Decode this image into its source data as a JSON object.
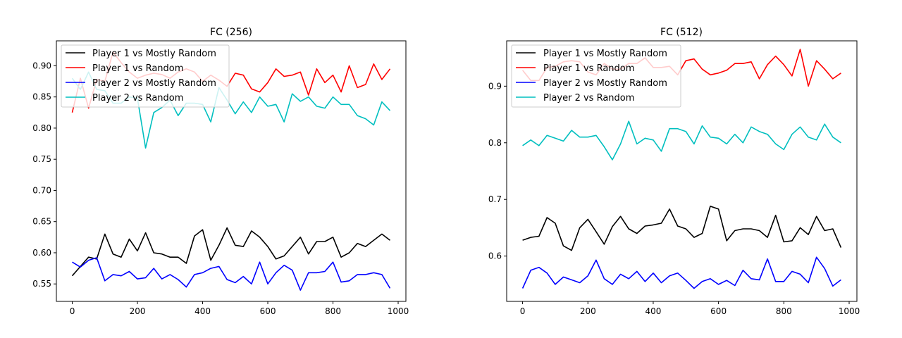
{
  "colors": {
    "player1_mostly_random": "#000000",
    "player1_random": "#ff0000",
    "player2_mostly_random": "#0000ff",
    "player2_random": "#00bfbf"
  },
  "chart_data": [
    {
      "type": "line",
      "title": "FC (256)",
      "xlabel": "",
      "ylabel": "",
      "grid": false,
      "legend_position": "upper-left",
      "xlim": [
        -48.75,
        1023.75
      ],
      "ylim": [
        0.522,
        0.94
      ],
      "xticks": [
        0,
        200,
        400,
        600,
        800,
        1000
      ],
      "yticks": [
        0.55,
        0.6,
        0.65,
        0.7,
        0.75,
        0.8,
        0.85,
        0.9
      ],
      "ytick_labels": [
        "0.55",
        "0.60",
        "0.65",
        "0.70",
        "0.75",
        "0.80",
        "0.85",
        "0.90"
      ],
      "x": [
        0,
        25,
        50,
        75,
        100,
        125,
        150,
        175,
        200,
        225,
        250,
        275,
        300,
        325,
        350,
        375,
        400,
        425,
        450,
        475,
        500,
        525,
        550,
        575,
        600,
        625,
        650,
        675,
        700,
        725,
        750,
        775,
        800,
        825,
        850,
        875,
        900,
        925,
        950,
        975
      ],
      "series": [
        {
          "name": "Player 1 vs Mostly Random",
          "color_key": "player1_mostly_random",
          "values": [
            0.563,
            0.578,
            0.593,
            0.59,
            0.63,
            0.598,
            0.593,
            0.622,
            0.603,
            0.632,
            0.6,
            0.598,
            0.593,
            0.593,
            0.583,
            0.627,
            0.637,
            0.588,
            0.612,
            0.64,
            0.612,
            0.61,
            0.635,
            0.625,
            0.61,
            0.59,
            0.595,
            0.61,
            0.625,
            0.598,
            0.618,
            0.618,
            0.625,
            0.593,
            0.6,
            0.615,
            0.61,
            0.62,
            0.63,
            0.62
          ]
        },
        {
          "name": "Player 1 vs Random",
          "color_key": "player1_random",
          "values": [
            0.825,
            0.88,
            0.832,
            0.878,
            0.875,
            0.922,
            0.905,
            0.89,
            0.88,
            0.885,
            0.888,
            0.886,
            0.88,
            0.89,
            0.895,
            0.89,
            0.875,
            0.885,
            0.877,
            0.867,
            0.888,
            0.885,
            0.863,
            0.858,
            0.873,
            0.895,
            0.883,
            0.885,
            0.89,
            0.853,
            0.895,
            0.873,
            0.885,
            0.858,
            0.9,
            0.865,
            0.87,
            0.903,
            0.878,
            0.895
          ]
        },
        {
          "name": "Player 2 vs Mostly Random",
          "color_key": "player2_mostly_random",
          "values": [
            0.585,
            0.577,
            0.588,
            0.592,
            0.555,
            0.565,
            0.563,
            0.57,
            0.558,
            0.56,
            0.575,
            0.558,
            0.565,
            0.557,
            0.545,
            0.565,
            0.568,
            0.575,
            0.578,
            0.557,
            0.552,
            0.562,
            0.55,
            0.585,
            0.55,
            0.568,
            0.58,
            0.572,
            0.54,
            0.568,
            0.568,
            0.57,
            0.585,
            0.553,
            0.555,
            0.565,
            0.565,
            0.568,
            0.565,
            0.543
          ]
        },
        {
          "name": "Player 2 vs Random",
          "color_key": "player2_random",
          "values": [
            0.88,
            0.862,
            0.89,
            0.862,
            0.86,
            0.84,
            0.84,
            0.85,
            0.848,
            0.768,
            0.825,
            0.833,
            0.845,
            0.82,
            0.84,
            0.84,
            0.838,
            0.81,
            0.865,
            0.845,
            0.823,
            0.842,
            0.825,
            0.85,
            0.835,
            0.838,
            0.81,
            0.855,
            0.843,
            0.85,
            0.835,
            0.832,
            0.85,
            0.838,
            0.838,
            0.82,
            0.815,
            0.805,
            0.842,
            0.828
          ]
        }
      ]
    },
    {
      "type": "line",
      "title": "FC (512)",
      "xlabel": "",
      "ylabel": "",
      "grid": false,
      "legend_position": "upper-left",
      "xlim": [
        -48.75,
        1023.75
      ],
      "ylim": [
        0.52,
        0.98
      ],
      "xticks": [
        0,
        200,
        400,
        600,
        800,
        1000
      ],
      "yticks": [
        0.6,
        0.7,
        0.8,
        0.9
      ],
      "ytick_labels": [
        "0.6",
        "0.7",
        "0.8",
        "0.9"
      ],
      "x": [
        0,
        25,
        50,
        75,
        100,
        125,
        150,
        175,
        200,
        225,
        250,
        275,
        300,
        325,
        350,
        375,
        400,
        425,
        450,
        475,
        500,
        525,
        550,
        575,
        600,
        625,
        650,
        675,
        700,
        725,
        750,
        775,
        800,
        825,
        850,
        875,
        900,
        925,
        950,
        975
      ],
      "series": [
        {
          "name": "Player 1 vs Mostly Random",
          "color_key": "player1_mostly_random",
          "values": [
            0.628,
            0.633,
            0.635,
            0.668,
            0.658,
            0.618,
            0.61,
            0.65,
            0.665,
            0.643,
            0.621,
            0.652,
            0.67,
            0.648,
            0.64,
            0.653,
            0.655,
            0.658,
            0.683,
            0.653,
            0.648,
            0.633,
            0.64,
            0.688,
            0.683,
            0.627,
            0.645,
            0.648,
            0.648,
            0.645,
            0.633,
            0.672,
            0.625,
            0.627,
            0.65,
            0.638,
            0.67,
            0.645,
            0.648,
            0.615
          ]
        },
        {
          "name": "Player 1 vs Random",
          "color_key": "player1_random",
          "values": [
            0.928,
            0.91,
            0.91,
            0.933,
            0.935,
            0.943,
            0.945,
            0.943,
            0.925,
            0.92,
            0.94,
            0.93,
            0.93,
            0.94,
            0.94,
            0.95,
            0.933,
            0.933,
            0.935,
            0.92,
            0.945,
            0.948,
            0.93,
            0.92,
            0.923,
            0.928,
            0.94,
            0.94,
            0.943,
            0.913,
            0.938,
            0.953,
            0.938,
            0.918,
            0.965,
            0.9,
            0.945,
            0.93,
            0.913,
            0.923
          ]
        },
        {
          "name": "Player 2 vs Mostly Random",
          "color_key": "player2_mostly_random",
          "values": [
            0.543,
            0.575,
            0.58,
            0.57,
            0.55,
            0.563,
            0.558,
            0.553,
            0.565,
            0.593,
            0.56,
            0.55,
            0.568,
            0.56,
            0.573,
            0.555,
            0.57,
            0.553,
            0.565,
            0.57,
            0.557,
            0.543,
            0.555,
            0.56,
            0.55,
            0.557,
            0.548,
            0.575,
            0.56,
            0.558,
            0.595,
            0.555,
            0.555,
            0.573,
            0.568,
            0.553,
            0.598,
            0.578,
            0.547,
            0.558
          ]
        },
        {
          "name": "Player 2 vs Random",
          "color_key": "player2_random",
          "values": [
            0.795,
            0.805,
            0.795,
            0.813,
            0.808,
            0.803,
            0.822,
            0.81,
            0.81,
            0.813,
            0.793,
            0.77,
            0.798,
            0.838,
            0.798,
            0.808,
            0.805,
            0.785,
            0.825,
            0.825,
            0.82,
            0.798,
            0.83,
            0.81,
            0.808,
            0.798,
            0.815,
            0.8,
            0.828,
            0.82,
            0.815,
            0.798,
            0.788,
            0.815,
            0.828,
            0.81,
            0.805,
            0.833,
            0.81,
            0.8
          ]
        }
      ]
    }
  ]
}
